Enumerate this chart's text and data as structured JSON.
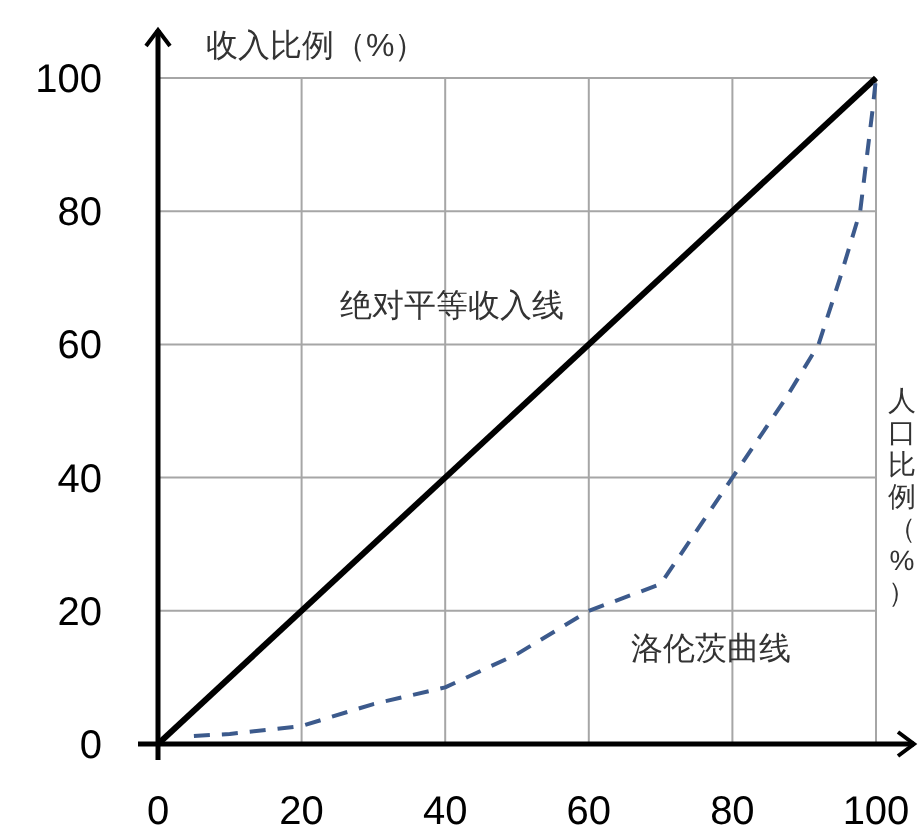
{
  "chart_data": {
    "type": "line",
    "xlabel": "人口比例（%）",
    "ylabel": "收入比例（%）",
    "xlim": [
      0,
      100
    ],
    "ylim": [
      0,
      100
    ],
    "xticks": [
      0,
      20,
      40,
      60,
      80,
      100
    ],
    "yticks": [
      0,
      20,
      40,
      60,
      80,
      100
    ],
    "grid": true,
    "series": [
      {
        "color": "#000000",
        "line_style": "solid",
        "x": [
          0,
          100
        ],
        "values": [
          0,
          100
        ]
      },
      {
        "color": "#3c5a8c",
        "line_style": "dashed",
        "x": [
          5,
          10,
          20,
          30,
          40,
          50,
          60,
          70,
          80,
          87.5,
          92,
          95,
          97.8,
          99.5,
          100
        ],
        "values": [
          1.2,
          1.5,
          2.7,
          6,
          8.5,
          13.5,
          20,
          24,
          40,
          52,
          60,
          70,
          80,
          95,
          100
        ]
      }
    ],
    "annotations": [
      "绝对平等收入线",
      "洛伦茨曲线"
    ]
  }
}
